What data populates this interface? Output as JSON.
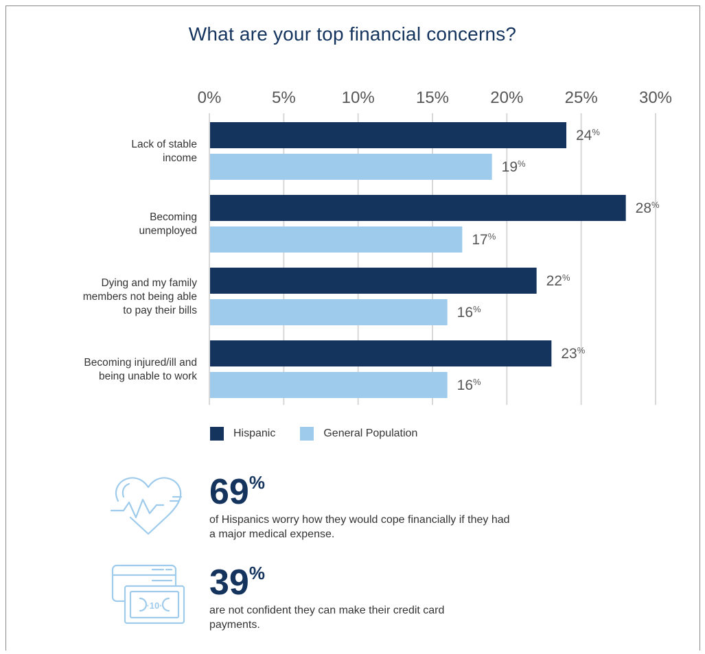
{
  "title": "What are your top financial concerns?",
  "chart_data": {
    "type": "bar",
    "orientation": "horizontal",
    "title": "What are your top financial concerns?",
    "categories": [
      "Lack of stable income",
      "Becoming unemployed",
      "Dying and my family members not being able to pay their bills",
      "Becoming injured/ill and being unable to work"
    ],
    "category_lines": [
      [
        "Lack of stable",
        "income"
      ],
      [
        "Becoming",
        "unemployed"
      ],
      [
        "Dying and my family",
        "members not being able",
        "to pay their bills"
      ],
      [
        "Becoming injured/ill and",
        "being unable to work"
      ]
    ],
    "series": [
      {
        "name": "Hispanic",
        "values": [
          24,
          28,
          22,
          23
        ],
        "color": "#14345e"
      },
      {
        "name": "General Population",
        "values": [
          19,
          17,
          16,
          16
        ],
        "color": "#9ecbec"
      }
    ],
    "xlim": [
      0,
      30
    ],
    "ticks": [
      "0%",
      "5%",
      "10%",
      "15%",
      "20%",
      "25%",
      "30%"
    ],
    "tick_values": [
      0,
      5,
      10,
      15,
      20,
      25,
      30
    ],
    "value_suffix": "%",
    "grid": true,
    "legend": "bottom"
  },
  "legend": {
    "hispanic": "Hispanic",
    "general": "General Population",
    "hispanic_color": "#14345e",
    "general_color": "#9ecbec"
  },
  "stats": [
    {
      "value": "69",
      "suffix": "%",
      "text": "of Hispanics worry how they would cope financially if they had a major medical expense.",
      "icon": "heart-pulse-icon"
    },
    {
      "value": "39",
      "suffix": "%",
      "text": "are not confident they can make their credit card payments.",
      "icon": "credit-card-cash-icon"
    }
  ],
  "icon_cash_label": "10",
  "colors": {
    "navy": "#14345e",
    "light_blue": "#9ecbec",
    "grid": "#d8d8d8"
  }
}
